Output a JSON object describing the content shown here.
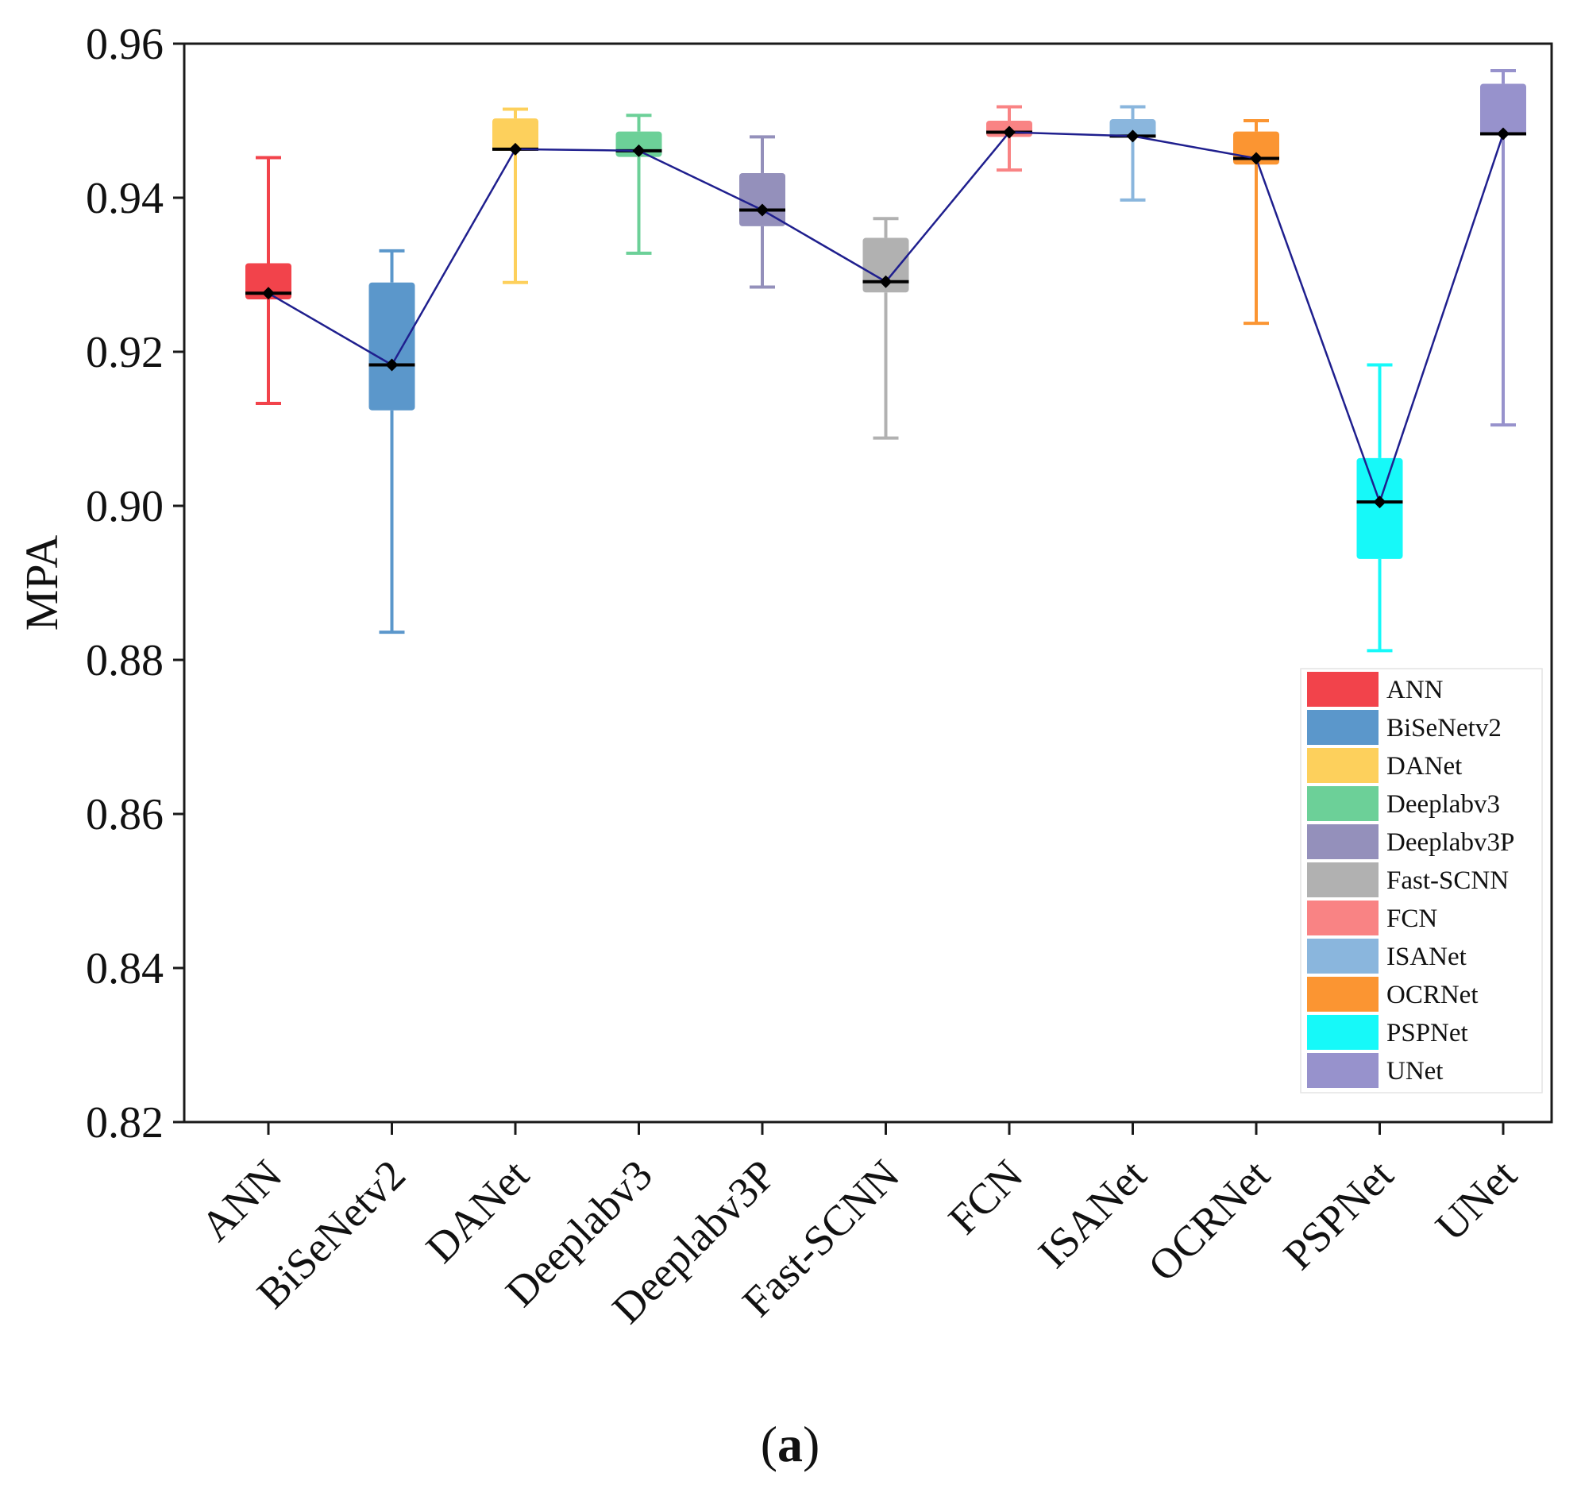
{
  "chart_data": {
    "type": "box",
    "title": "",
    "xlabel": "",
    "ylabel": "MPA",
    "ylim": [
      0.82,
      0.96
    ],
    "yticks": [
      "0.82",
      "0.84",
      "0.86",
      "0.88",
      "0.90",
      "0.92",
      "0.94",
      "0.96"
    ],
    "categories": [
      "ANN",
      "BiSeNetv2",
      "DANet",
      "Deeplabv3",
      "Deeplabv3P",
      "Fast-SCNN",
      "FCN",
      "ISANet",
      "OCRNet",
      "PSPNet",
      "UNet"
    ],
    "series": [
      {
        "name": "ANN",
        "color": "#f2434b",
        "min": 0.9133,
        "q1": 0.9268,
        "median": 0.9276,
        "q3": 0.9315,
        "max": 0.9452
      },
      {
        "name": "BiSeNetv2",
        "color": "#5b97cb",
        "min": 0.8836,
        "q1": 0.9124,
        "median": 0.9183,
        "q3": 0.929,
        "max": 0.9331
      },
      {
        "name": "DANet",
        "color": "#fdd05c",
        "min": 0.929,
        "q1": 0.9461,
        "median": 0.9463,
        "q3": 0.9503,
        "max": 0.9515
      },
      {
        "name": "Deeplabv3",
        "color": "#6cd098",
        "min": 0.9328,
        "q1": 0.9453,
        "median": 0.9461,
        "q3": 0.9486,
        "max": 0.9507
      },
      {
        "name": "Deeplabv3P",
        "color": "#9490bb",
        "min": 0.9284,
        "q1": 0.9363,
        "median": 0.9384,
        "q3": 0.9432,
        "max": 0.9479
      },
      {
        "name": "Fast-SCNN",
        "color": "#b1b1b1",
        "min": 0.9088,
        "q1": 0.9277,
        "median": 0.9291,
        "q3": 0.9348,
        "max": 0.9373
      },
      {
        "name": "FCN",
        "color": "#f98384",
        "min": 0.9436,
        "q1": 0.9479,
        "median": 0.9485,
        "q3": 0.95,
        "max": 0.9518
      },
      {
        "name": "ISANet",
        "color": "#8ab6dd",
        "min": 0.9397,
        "q1": 0.9478,
        "median": 0.948,
        "q3": 0.9502,
        "max": 0.9518
      },
      {
        "name": "OCRNet",
        "color": "#fb9532",
        "min": 0.9237,
        "q1": 0.9443,
        "median": 0.9451,
        "q3": 0.9486,
        "max": 0.95
      },
      {
        "name": "PSPNet",
        "color": "#16f9f9",
        "min": 0.8812,
        "q1": 0.8931,
        "median": 0.9005,
        "q3": 0.9062,
        "max": 0.9183
      },
      {
        "name": "UNet",
        "color": "#9792cc",
        "min": 0.9105,
        "q1": 0.9482,
        "median": 0.9483,
        "q3": 0.9548,
        "max": 0.9565
      }
    ],
    "mean_line": {
      "color": "#1f1f8e",
      "marker": "diamond"
    },
    "legend_position": "bottom-right",
    "grid": false
  },
  "caption": {
    "open": "(",
    "letter": "a",
    "close": ")"
  }
}
